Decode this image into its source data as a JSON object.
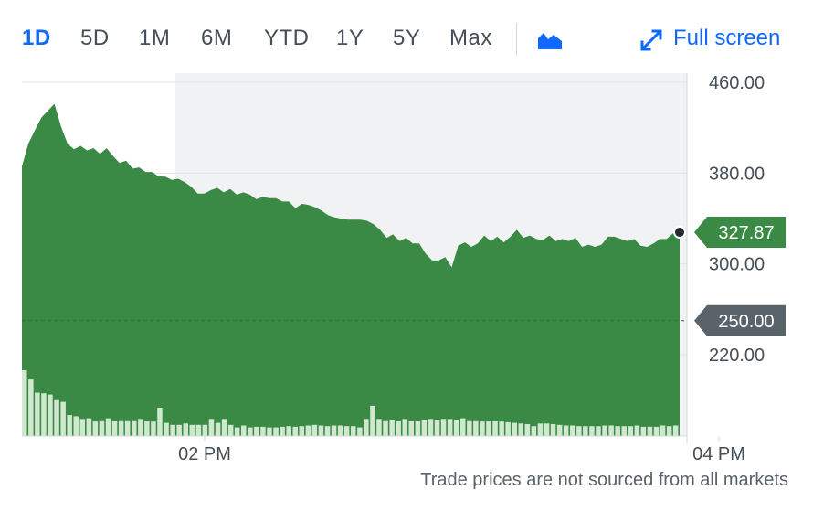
{
  "toolbar": {
    "ranges": [
      "1D",
      "5D",
      "1M",
      "6M",
      "YTD",
      "1Y",
      "5Y",
      "Max"
    ],
    "active_range": "1D",
    "chart_type_icon": "mountain-chart-icon",
    "fullscreen_icon": "expand-arrows-icon",
    "fullscreen_label": "Full screen"
  },
  "footer": {
    "note": "Trade prices are not sourced from all markets"
  },
  "colors": {
    "accent": "#0f69ff",
    "area": "#3a8a45",
    "volume": "#cfe8cf",
    "current_badge": "#3a8a45",
    "reference_badge": "#5b636a"
  },
  "chart_data": {
    "type": "area",
    "y_ticks": [
      "460.00",
      "380.00",
      "300.00",
      "220.00"
    ],
    "ylim": [
      205,
      466
    ],
    "x_ticks": [
      "02 PM",
      "04 PM"
    ],
    "current_price": 327.87,
    "current_label": "327.87",
    "reference_price": 250.0,
    "reference_label": "250.00",
    "grid": "horizontal",
    "price_series": [
      386,
      406,
      418,
      429,
      435,
      441,
      421,
      406,
      401,
      404,
      400,
      402,
      397,
      402,
      395,
      389,
      391,
      384,
      385,
      381,
      381,
      377,
      377,
      374,
      375,
      372,
      368,
      362,
      362,
      365,
      367,
      363,
      366,
      361,
      363,
      361,
      357,
      359,
      358,
      358,
      355,
      355,
      349,
      353,
      352,
      350,
      347,
      343,
      341,
      340,
      339,
      339,
      339,
      338,
      335,
      330,
      323,
      326,
      320,
      323,
      318,
      318,
      309,
      303,
      303,
      306,
      297,
      316,
      319,
      315,
      318,
      325,
      320,
      324,
      319,
      324,
      330,
      323,
      325,
      322,
      321,
      325,
      320,
      322,
      320,
      323,
      315,
      317,
      315,
      317,
      324,
      324,
      322,
      320,
      322,
      316,
      315,
      318,
      322,
      322,
      327,
      327.87
    ],
    "volume_series": [
      100,
      86,
      66,
      65,
      63,
      56,
      52,
      32,
      30,
      26,
      27,
      22,
      24,
      27,
      23,
      24,
      24,
      24,
      26,
      23,
      22,
      43,
      20,
      17,
      17,
      19,
      17,
      17,
      17,
      26,
      20,
      26,
      17,
      13,
      16,
      13,
      14,
      14,
      13,
      13,
      14,
      15,
      14,
      15,
      16,
      17,
      16,
      15,
      16,
      16,
      15,
      15,
      13,
      26,
      46,
      26,
      24,
      25,
      23,
      26,
      23,
      23,
      25,
      26,
      25,
      26,
      26,
      25,
      27,
      24,
      24,
      22,
      23,
      23,
      22,
      21,
      20,
      19,
      18,
      15,
      19,
      19,
      18,
      17,
      16,
      16,
      15,
      15,
      15,
      15,
      16,
      16,
      15,
      15,
      15,
      16,
      14,
      14,
      14,
      16,
      15,
      16
    ]
  }
}
